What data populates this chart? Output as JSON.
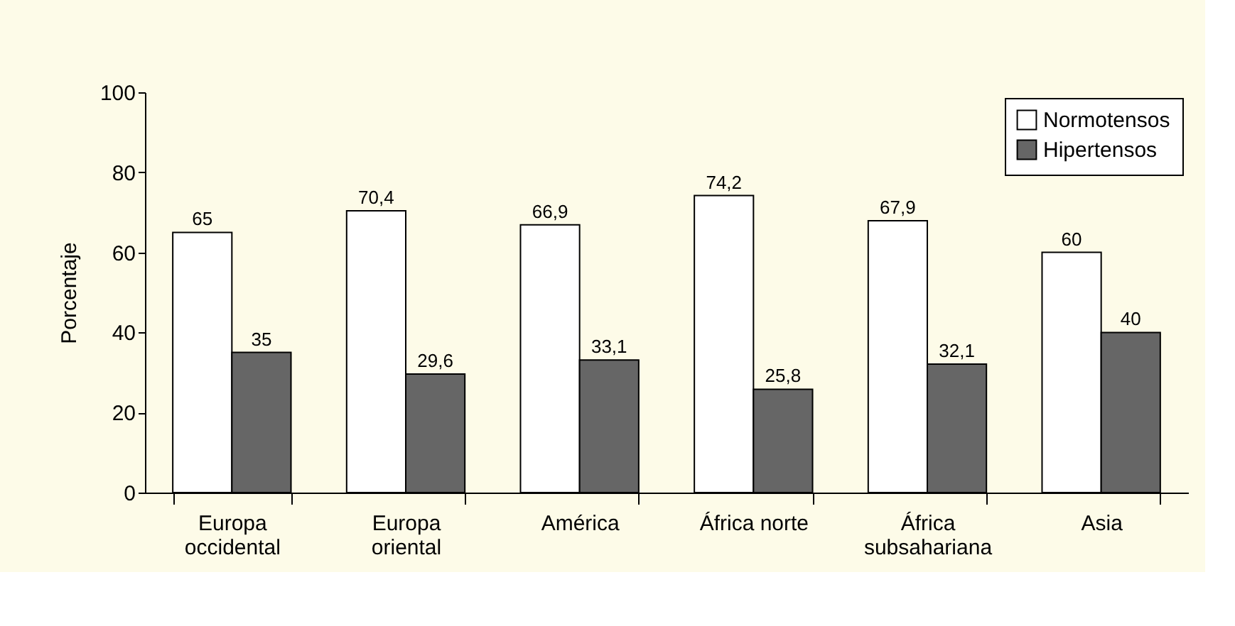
{
  "chart_data": {
    "type": "bar",
    "ylabel": "Porcentaje",
    "categories": [
      "Europa\noccidental",
      "Europa\noriental",
      "América",
      "África norte",
      "África\nsubsahariana",
      "Asia"
    ],
    "series": [
      {
        "name": "Normotensos",
        "color": "#ffffff",
        "values": [
          65,
          70.4,
          66.9,
          74.2,
          67.9,
          60
        ],
        "value_labels": [
          "65",
          "70,4",
          "66,9",
          "74,2",
          "67,9",
          "60"
        ]
      },
      {
        "name": "Hipertensos",
        "color": "#666666",
        "values": [
          35,
          29.6,
          33.1,
          25.8,
          32.1,
          40
        ],
        "value_labels": [
          "35",
          "29,6",
          "33,1",
          "25,8",
          "32,1",
          "40"
        ]
      }
    ],
    "ylim": [
      0,
      100
    ],
    "yticks": [
      0,
      20,
      40,
      60,
      80,
      100
    ],
    "grid": false,
    "legend": "top right"
  }
}
